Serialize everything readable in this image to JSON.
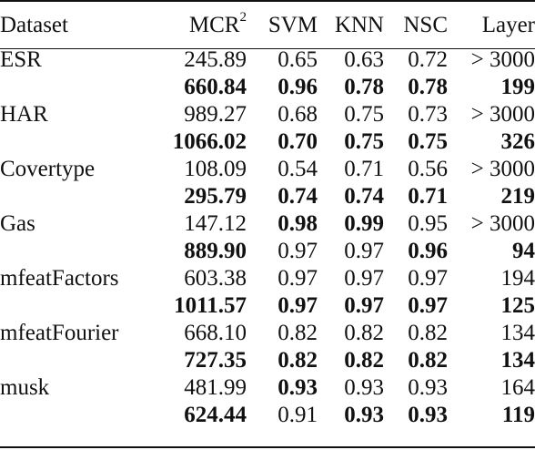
{
  "table": {
    "headers": {
      "dataset": "Dataset",
      "mcr_base": "MCR",
      "mcr_sup": "2",
      "svm": "SVM",
      "knn": "KNN",
      "nsc": "NSC",
      "layer": "Layer"
    },
    "rows": [
      {
        "dataset": "ESR",
        "mcr": "245.89",
        "svm": "0.65",
        "knn": "0.63",
        "nsc": "0.72",
        "layer": "> 3000",
        "bold": []
      },
      {
        "dataset": "",
        "mcr": "660.84",
        "svm": "0.96",
        "knn": "0.78",
        "nsc": "0.78",
        "layer": "199",
        "bold": [
          "mcr",
          "svm",
          "knn",
          "nsc",
          "layer"
        ]
      },
      {
        "dataset": "HAR",
        "mcr": "989.27",
        "svm": "0.68",
        "knn": "0.75",
        "nsc": "0.73",
        "layer": "> 3000",
        "bold": []
      },
      {
        "dataset": "",
        "mcr": "1066.02",
        "svm": "0.70",
        "knn": "0.75",
        "nsc": "0.75",
        "layer": "326",
        "bold": [
          "mcr",
          "svm",
          "knn",
          "nsc",
          "layer"
        ]
      },
      {
        "dataset": "Covertype",
        "mcr": "108.09",
        "svm": "0.54",
        "knn": "0.71",
        "nsc": "0.56",
        "layer": "> 3000",
        "bold": []
      },
      {
        "dataset": "",
        "mcr": "295.79",
        "svm": "0.74",
        "knn": "0.74",
        "nsc": "0.71",
        "layer": "219",
        "bold": [
          "mcr",
          "svm",
          "knn",
          "nsc",
          "layer"
        ]
      },
      {
        "dataset": "Gas",
        "mcr": "147.12",
        "svm": "0.98",
        "knn": "0.99",
        "nsc": "0.95",
        "layer": "> 3000",
        "bold": [
          "svm",
          "knn"
        ]
      },
      {
        "dataset": "",
        "mcr": "889.90",
        "svm": "0.97",
        "knn": "0.97",
        "nsc": "0.96",
        "layer": "94",
        "bold": [
          "mcr",
          "nsc",
          "layer"
        ]
      },
      {
        "dataset": "mfeatFactors",
        "mcr": "603.38",
        "svm": "0.97",
        "knn": "0.97",
        "nsc": "0.97",
        "layer": "194",
        "bold": []
      },
      {
        "dataset": "",
        "mcr": "1011.57",
        "svm": "0.97",
        "knn": "0.97",
        "nsc": "0.97",
        "layer": "125",
        "bold": [
          "mcr",
          "svm",
          "knn",
          "nsc",
          "layer"
        ]
      },
      {
        "dataset": "mfeatFourier",
        "mcr": "668.10",
        "svm": "0.82",
        "knn": "0.82",
        "nsc": "0.82",
        "layer": "134",
        "bold": []
      },
      {
        "dataset": "",
        "mcr": "727.35",
        "svm": "0.82",
        "knn": "0.82",
        "nsc": "0.82",
        "layer": "134",
        "bold": [
          "mcr",
          "svm",
          "knn",
          "nsc",
          "layer"
        ]
      },
      {
        "dataset": "musk",
        "mcr": "481.99",
        "svm": "0.93",
        "knn": "0.93",
        "nsc": "0.93",
        "layer": "164",
        "bold": [
          "svm"
        ]
      },
      {
        "dataset": "",
        "mcr": "624.44",
        "svm": "0.91",
        "knn": "0.93",
        "nsc": "0.93",
        "layer": "119",
        "bold": [
          "mcr",
          "knn",
          "nsc",
          "layer"
        ]
      }
    ]
  }
}
